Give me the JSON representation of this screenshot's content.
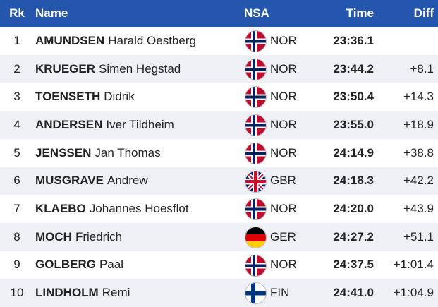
{
  "table": {
    "header": {
      "rank": "Rk",
      "name": "Name",
      "nsa": "NSA",
      "time": "Time",
      "diff": "Diff"
    },
    "rows": [
      {
        "rank": "1",
        "surname": "AMUNDSEN",
        "given": "Harald Oestberg",
        "nsa": "NOR",
        "time": "23:36.1"
      },
      {
        "rank": "2",
        "surname": "KRUEGER",
        "given": "Simen Hegstad",
        "nsa": "NOR",
        "time": "23:44.2",
        "diff": "+8.1"
      },
      {
        "rank": "3",
        "surname": "TOENSETH",
        "given": "Didrik",
        "nsa": "NOR",
        "time": "23:50.4",
        "diff": "+14.3"
      },
      {
        "rank": "4",
        "surname": "ANDERSEN",
        "given": "Iver Tildheim",
        "nsa": "NOR",
        "time": "23:55.0",
        "diff": "+18.9"
      },
      {
        "rank": "5",
        "surname": "JENSSEN",
        "given": "Jan Thomas",
        "nsa": "NOR",
        "time": "24:14.9",
        "diff": "+38.8"
      },
      {
        "rank": "6",
        "surname": "MUSGRAVE",
        "given": "Andrew",
        "nsa": "GBR",
        "time": "24:18.3",
        "diff": "+42.2"
      },
      {
        "rank": "7",
        "surname": "KLAEBO",
        "given": "Johannes Hoesflot",
        "nsa": "NOR",
        "time": "24:20.0",
        "diff": "+43.9"
      },
      {
        "rank": "8",
        "surname": "MOCH",
        "given": "Friedrich",
        "nsa": "GER",
        "time": "24:27.2",
        "diff": "+51.1"
      },
      {
        "rank": "9",
        "surname": "GOLBERG",
        "given": "Paal",
        "nsa": "NOR",
        "time": "24:37.5",
        "diff": "+1:01.4"
      },
      {
        "rank": "10",
        "surname": "LINDHOLM",
        "given": "Remi",
        "nsa": "FIN",
        "time": "24:41.0",
        "diff": "+1:04.9"
      }
    ]
  }
}
